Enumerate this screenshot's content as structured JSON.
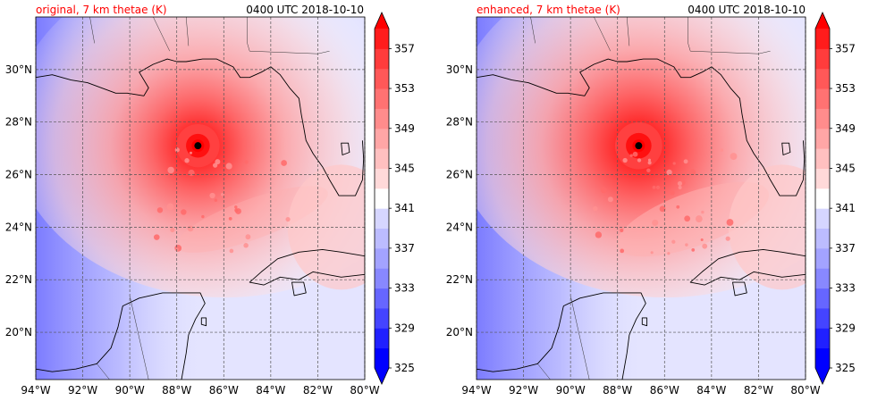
{
  "panels": [
    {
      "id": "original",
      "title_left": "original, 7 km thetae (K)",
      "title_right": "0400 UTC 2018-10-10",
      "intensity": 0.75
    },
    {
      "id": "enhanced",
      "title_left": "enhanced, 7 km thetae (K)",
      "title_right": "0400 UTC 2018-10-10",
      "intensity": 1.0
    }
  ],
  "map": {
    "lon_range": [
      -94,
      -80
    ],
    "lat_range": [
      18.2,
      32.0
    ],
    "lon_ticks": [
      -94,
      -92,
      -90,
      -88,
      -86,
      -84,
      -82,
      -80
    ],
    "lat_ticks": [
      20,
      22,
      24,
      26,
      28,
      30
    ],
    "lon_tick_labels": [
      "94°W",
      "92°W",
      "90°W",
      "88°W",
      "86°W",
      "84°W",
      "82°W",
      "80°W"
    ],
    "lat_tick_labels": [
      "20°N",
      "22°N",
      "24°N",
      "26°N",
      "28°N",
      "30°N"
    ],
    "storm_center": {
      "lon": -87.1,
      "lat": 27.1
    }
  },
  "colorbar": {
    "levels": [
      325,
      327,
      329,
      331,
      333,
      335,
      337,
      339,
      341,
      343,
      345,
      347,
      349,
      351,
      353,
      355,
      357,
      359
    ],
    "tick_labels": [
      "325",
      "329",
      "333",
      "337",
      "341",
      "345",
      "349",
      "353",
      "357"
    ],
    "colors": [
      "#0000ff",
      "#2020ff",
      "#4444ff",
      "#6666ff",
      "#8888ff",
      "#a3a3ff",
      "#bcbcff",
      "#d6d6ff",
      "#ffffff",
      "#ffd9d9",
      "#ffc0c0",
      "#ffa6a6",
      "#ff8c8c",
      "#ff7272",
      "#ff5858",
      "#ff3c3c",
      "#ff1c1c"
    ],
    "extend_low": "#0000ff",
    "extend_high": "#ff0000"
  }
}
